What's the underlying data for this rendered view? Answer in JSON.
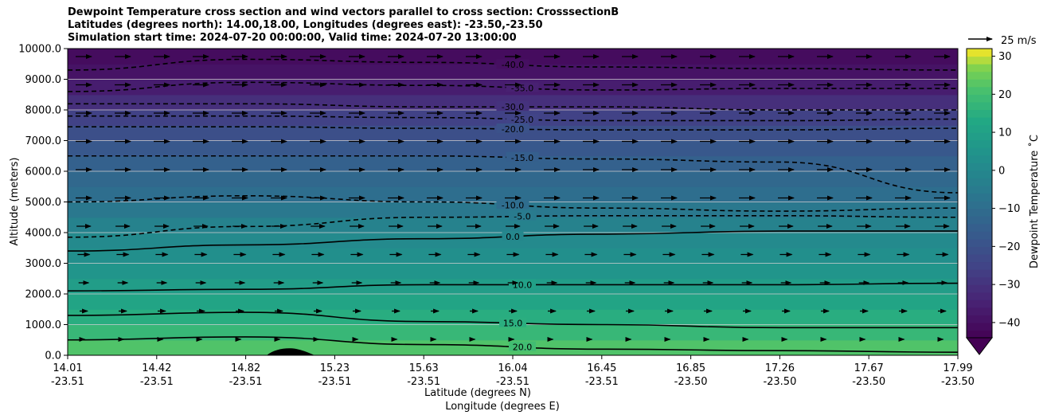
{
  "chart_data": {
    "type": "heatmap",
    "title_lines": [
      "Dewpoint Temperature cross section and wind vectors parallel to cross section: CrosssectionB",
      "Latitudes (degrees north): 14.00,18.00, Longitudes (degrees east): -23.50,-23.50",
      "Simulation start time: 2024-07-20 00:00:00, Valid time: 2024-07-20 13:00:00"
    ],
    "ylabel": "Altitude (meters)",
    "xlabel_lat": "Latitude (degrees N)",
    "xlabel_lon": "Longitude (degrees E)",
    "ylim": [
      0,
      10000
    ],
    "y_ticks": [
      "0.0",
      "1000.0",
      "2000.0",
      "3000.0",
      "4000.0",
      "5000.0",
      "6000.0",
      "7000.0",
      "8000.0",
      "9000.0",
      "10000.0"
    ],
    "x_ticks": [
      {
        "lat": "14.01",
        "lon": "-23.51"
      },
      {
        "lat": "14.42",
        "lon": "-23.51"
      },
      {
        "lat": "14.82",
        "lon": "-23.51"
      },
      {
        "lat": "15.23",
        "lon": "-23.51"
      },
      {
        "lat": "15.63",
        "lon": "-23.51"
      },
      {
        "lat": "16.04",
        "lon": "-23.51"
      },
      {
        "lat": "16.45",
        "lon": "-23.51"
      },
      {
        "lat": "16.85",
        "lon": "-23.50"
      },
      {
        "lat": "17.26",
        "lon": "-23.50"
      },
      {
        "lat": "17.67",
        "lon": "-23.50"
      },
      {
        "lat": "17.99",
        "lon": "-23.50"
      }
    ],
    "colorbar": {
      "label": "Dewpoint Temperature ˚C",
      "ticks": [
        "30",
        "20",
        "10",
        "0",
        "−10",
        "−20",
        "−30",
        "−40"
      ],
      "range": [
        -44,
        32
      ],
      "extend": "min"
    },
    "wind_key": {
      "label": "25 m/s"
    },
    "profile": {
      "altitude_m": [
        0,
        500,
        1000,
        1500,
        2000,
        2500,
        3000,
        3500,
        4000,
        4500,
        5000,
        5500,
        6000,
        6500,
        7000,
        7500,
        8000,
        8500,
        9000,
        9500,
        10000
      ],
      "dewpoint_c": [
        24,
        20,
        16,
        13,
        10,
        7,
        4,
        2,
        0,
        -4,
        -8,
        -11,
        -13,
        -16,
        -19,
        -23,
        -28,
        -34,
        -38,
        -40,
        -42
      ]
    },
    "contours": [
      {
        "label": "-40.0",
        "style": "dashed",
        "level_m": [
          9300,
          9650,
          9550,
          9400,
          9350,
          9300
        ]
      },
      {
        "label": "-35.0",
        "style": "dashed",
        "level_m": [
          8600,
          8900,
          8800,
          8650,
          8700,
          8700
        ]
      },
      {
        "label": "-30.0",
        "style": "dashed",
        "level_m": [
          8200,
          8200,
          8100,
          8100,
          8000,
          8000
        ]
      },
      {
        "label": "-25.0",
        "style": "dashed",
        "level_m": [
          7800,
          7800,
          7750,
          7650,
          7650,
          7700
        ]
      },
      {
        "label": "-20.0",
        "style": "dashed",
        "level_m": [
          7450,
          7450,
          7400,
          7350,
          7350,
          7400
        ]
      },
      {
        "label": "-15.0",
        "style": "dashed",
        "level_m": [
          6500,
          6500,
          6500,
          6400,
          6300,
          5300
        ]
      },
      {
        "label": "-10.0",
        "style": "dashed",
        "level_m": [
          5000,
          5200,
          5000,
          4800,
          4700,
          4800
        ]
      },
      {
        "label": "-5.0",
        "style": "dashed",
        "level_m": [
          3850,
          4200,
          4500,
          4550,
          4550,
          4500
        ]
      },
      {
        "label": "0.0",
        "style": "solid",
        "level_m": [
          3400,
          3600,
          3800,
          3950,
          4050,
          4050
        ]
      },
      {
        "label": "10.0",
        "style": "solid",
        "level_m": [
          2100,
          2150,
          2300,
          2300,
          2300,
          2350
        ]
      },
      {
        "label": "15.0",
        "style": "solid",
        "level_m": [
          1300,
          1400,
          1100,
          1000,
          900,
          900
        ]
      },
      {
        "label": "20.0",
        "style": "solid",
        "level_m": [
          500,
          600,
          350,
          200,
          150,
          100
        ]
      }
    ],
    "wind": {
      "direction": "parallel to cross section, toward higher latitude",
      "speed_m_s_range": [
        3,
        30
      ]
    }
  }
}
